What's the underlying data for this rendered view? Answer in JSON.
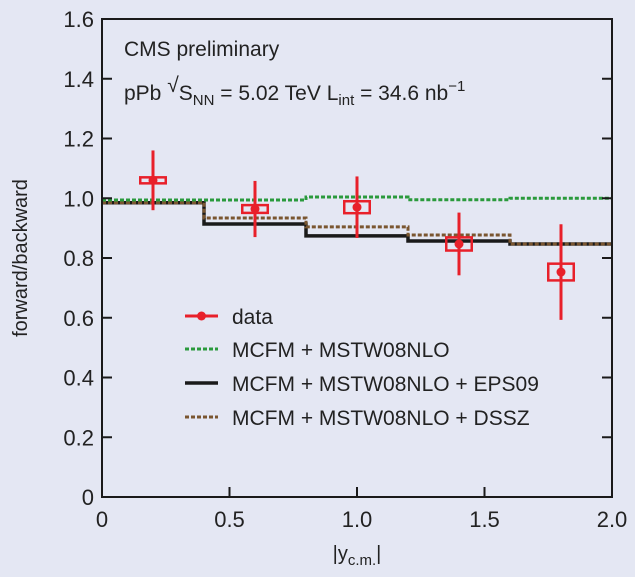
{
  "chart_data": {
    "type": "line",
    "xlabel": "|y",
    "xlabel_sub": "c.m.",
    "xlabel_end": "|",
    "ylabel": "forward/backward",
    "xlim": [
      0,
      2.0
    ],
    "ylim": [
      0,
      1.6
    ],
    "xticks": [
      "0",
      "0.5",
      "1.0",
      "1.5",
      "2.0"
    ],
    "xtick_values": [
      0,
      0.5,
      1.0,
      1.5,
      2.0
    ],
    "yticks": [
      "0",
      "0.2",
      "0.4",
      "0.6",
      "0.8",
      "1.0",
      "1.2",
      "1.4",
      "1.6"
    ],
    "ytick_values": [
      0,
      0.2,
      0.4,
      0.6,
      0.8,
      1.0,
      1.2,
      1.4,
      1.6
    ],
    "annotations": {
      "line1": "CMS preliminary",
      "pre": "pPb ",
      "sqrt": "√",
      "s": "S",
      "s_sub": "NN",
      "mid": " = 5.02 TeV L",
      "l_sub": "int",
      "post": " = 34.6 nb",
      "sup": "−1"
    },
    "data": {
      "name": "data",
      "color": "#e8202a",
      "x": [
        0.2,
        0.6,
        1.0,
        1.4,
        1.8
      ],
      "y": [
        1.06,
        0.964,
        0.97,
        0.847,
        0.753
      ],
      "stat_err": [
        0.1,
        0.094,
        0.103,
        0.105,
        0.16
      ],
      "sys_err": [
        0.01,
        0.013,
        0.02,
        0.022,
        0.028
      ]
    },
    "bin_edges": [
      0,
      0.4,
      0.8,
      1.2,
      1.6,
      2.0
    ],
    "series": [
      {
        "name": "MCFM + MSTW08NLO",
        "color": "#2a9a3c",
        "style": "dotted",
        "values": [
          0.994,
          0.994,
          1.004,
          0.995,
          1.0
        ]
      },
      {
        "name": "MCFM + MSTW08NLO + EPS09",
        "color": "#1a1a1a",
        "style": "solid",
        "values": [
          0.985,
          0.914,
          0.874,
          0.857,
          0.847
        ]
      },
      {
        "name": "MCFM + MSTW08NLO + DSSZ",
        "color": "#7a5630",
        "style": "dotted",
        "values": [
          0.985,
          0.934,
          0.904,
          0.877,
          0.847
        ]
      }
    ],
    "legend_position": "center-left"
  }
}
